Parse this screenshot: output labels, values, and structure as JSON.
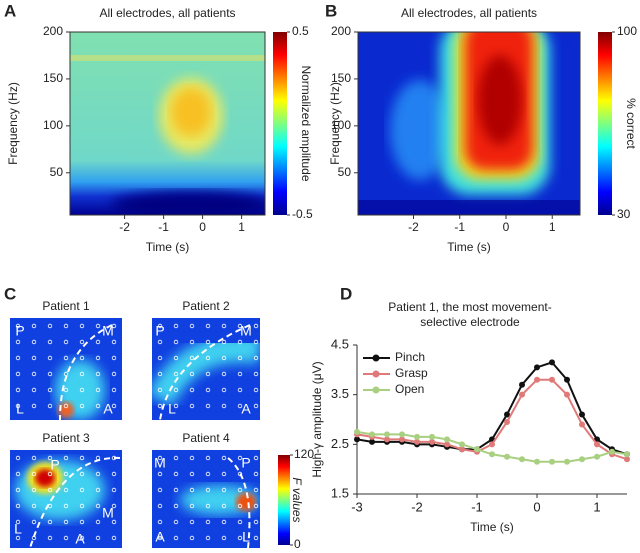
{
  "chart_data": [
    {
      "type": "heatmap",
      "label": "A",
      "title": "All electrodes, all patients",
      "x_label": "Time (s)",
      "y_label": "Frequency (Hz)",
      "xlim": [
        -3.4,
        1.6
      ],
      "xticks": [
        -2,
        -1,
        0,
        1
      ],
      "ylim": [
        5,
        200
      ],
      "yticks": [
        50,
        100,
        150,
        200
      ],
      "colorbar": {
        "label": "Normalized amplitude",
        "lim": [
          -0.5,
          0.5
        ],
        "ticks": [
          -0.5,
          0.5
        ]
      }
    },
    {
      "type": "heatmap",
      "label": "B",
      "title": "All electrodes, all patients",
      "x_label": "Time (s)",
      "y_label": "Frequency (Hz)",
      "xlim": [
        -3.2,
        1.6
      ],
      "xticks": [
        -2,
        -1,
        0,
        1
      ],
      "ylim": [
        5,
        200
      ],
      "yticks": [
        50,
        100,
        150,
        200
      ],
      "colorbar": {
        "label": "% correct",
        "lim": [
          30,
          100
        ],
        "ticks": [
          30,
          100
        ]
      }
    },
    {
      "type": "map",
      "label": "C",
      "maps": [
        {
          "title": "Patient 1",
          "labels": [
            "P",
            "M",
            "L",
            "A"
          ]
        },
        {
          "title": "Patient 2",
          "labels": [
            "P",
            "M",
            "L",
            "A"
          ]
        },
        {
          "title": "Patient 3",
          "labels": [
            "P",
            "M",
            "L",
            "A"
          ]
        },
        {
          "title": "Patient 4",
          "labels": [
            "M",
            "P",
            "A",
            "L"
          ]
        }
      ],
      "colorbar": {
        "label": "F values",
        "lim": [
          0,
          120
        ],
        "ticks": [
          0,
          120
        ]
      }
    },
    {
      "type": "line",
      "label": "D",
      "title": "Patient 1, the most movement-selective electrode",
      "x_label": "Time (s)",
      "y_label": "High-γ amplitude (μV)",
      "xlim": [
        -3,
        1.5
      ],
      "xticks": [
        -3,
        -2,
        -1,
        0,
        1
      ],
      "ylim": [
        1.5,
        4.5
      ],
      "yticks": [
        1.5,
        2.5,
        3.5,
        4.5
      ],
      "x": [
        -3,
        -2.75,
        -2.5,
        -2.25,
        -2,
        -1.75,
        -1.5,
        -1.25,
        -1,
        -0.75,
        -0.5,
        -0.25,
        0,
        0.25,
        0.5,
        0.75,
        1,
        1.25,
        1.5
      ],
      "series": [
        {
          "name": "Pinch",
          "color": "#111111",
          "values": [
            2.6,
            2.55,
            2.55,
            2.55,
            2.5,
            2.5,
            2.45,
            2.4,
            2.4,
            2.6,
            3.1,
            3.7,
            4.05,
            4.15,
            3.8,
            3.1,
            2.6,
            2.4,
            2.3
          ]
        },
        {
          "name": "Grasp",
          "color": "#e07a78",
          "values": [
            2.7,
            2.65,
            2.6,
            2.6,
            2.55,
            2.55,
            2.5,
            2.4,
            2.35,
            2.5,
            2.95,
            3.5,
            3.8,
            3.8,
            3.5,
            2.9,
            2.5,
            2.3,
            2.2
          ]
        },
        {
          "name": "Open",
          "color": "#a8d080",
          "values": [
            2.75,
            2.7,
            2.7,
            2.7,
            2.65,
            2.65,
            2.6,
            2.5,
            2.4,
            2.3,
            2.25,
            2.2,
            2.15,
            2.15,
            2.15,
            2.2,
            2.25,
            2.35,
            2.3
          ]
        }
      ]
    }
  ]
}
